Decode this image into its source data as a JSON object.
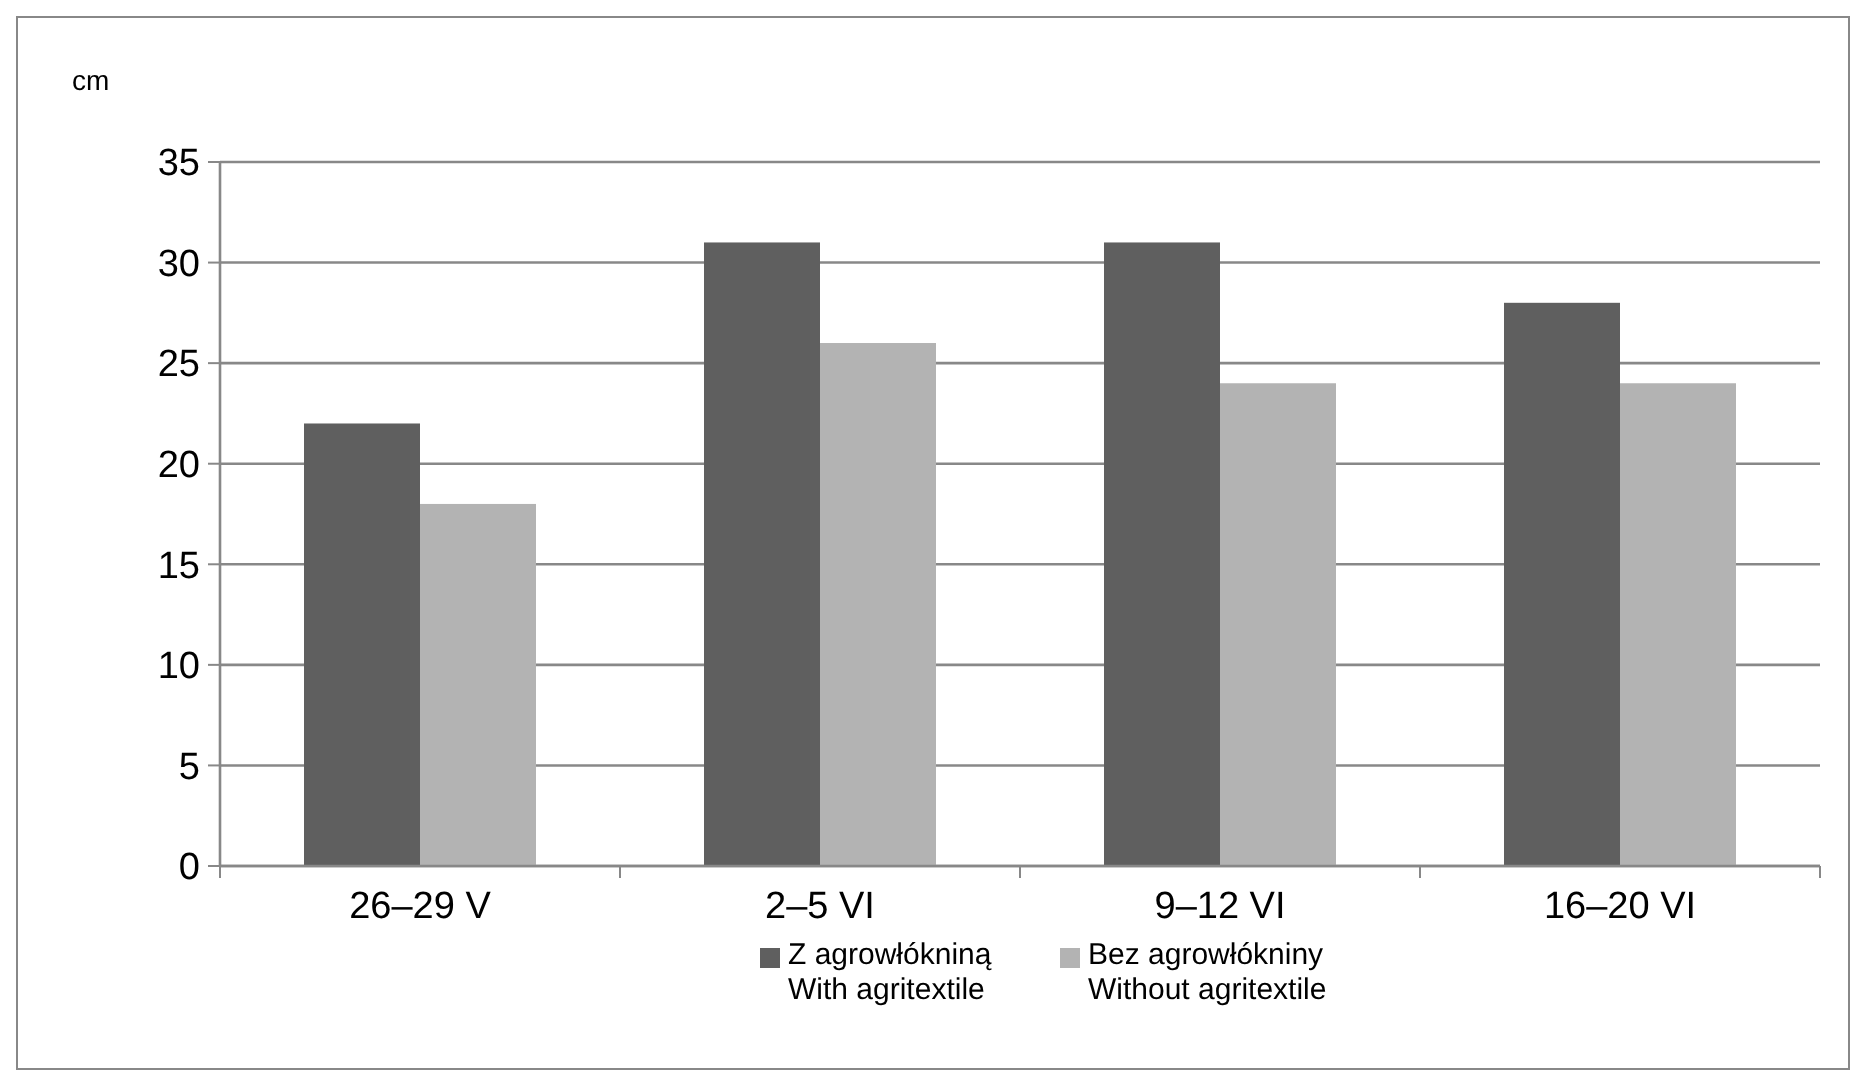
{
  "chart_data": {
    "type": "bar",
    "ylabel": "cm",
    "categories": [
      "26–29 V",
      "2–5 VI",
      "9–12 VI",
      "16–20 VI"
    ],
    "series": [
      {
        "name": "Z agrowłókniną\nWith agritextile",
        "color": "#5f5f5f",
        "values": [
          22,
          31,
          31,
          28
        ]
      },
      {
        "name": "Bez agrowłókniny\nWithout agritextile",
        "color": "#b3b3b3",
        "values": [
          18,
          26,
          24,
          24
        ]
      }
    ],
    "ylim": [
      0,
      35
    ],
    "yticks": [
      0,
      5,
      10,
      15,
      20,
      25,
      30,
      35
    ],
    "grid": "y",
    "legend": "bottom"
  }
}
